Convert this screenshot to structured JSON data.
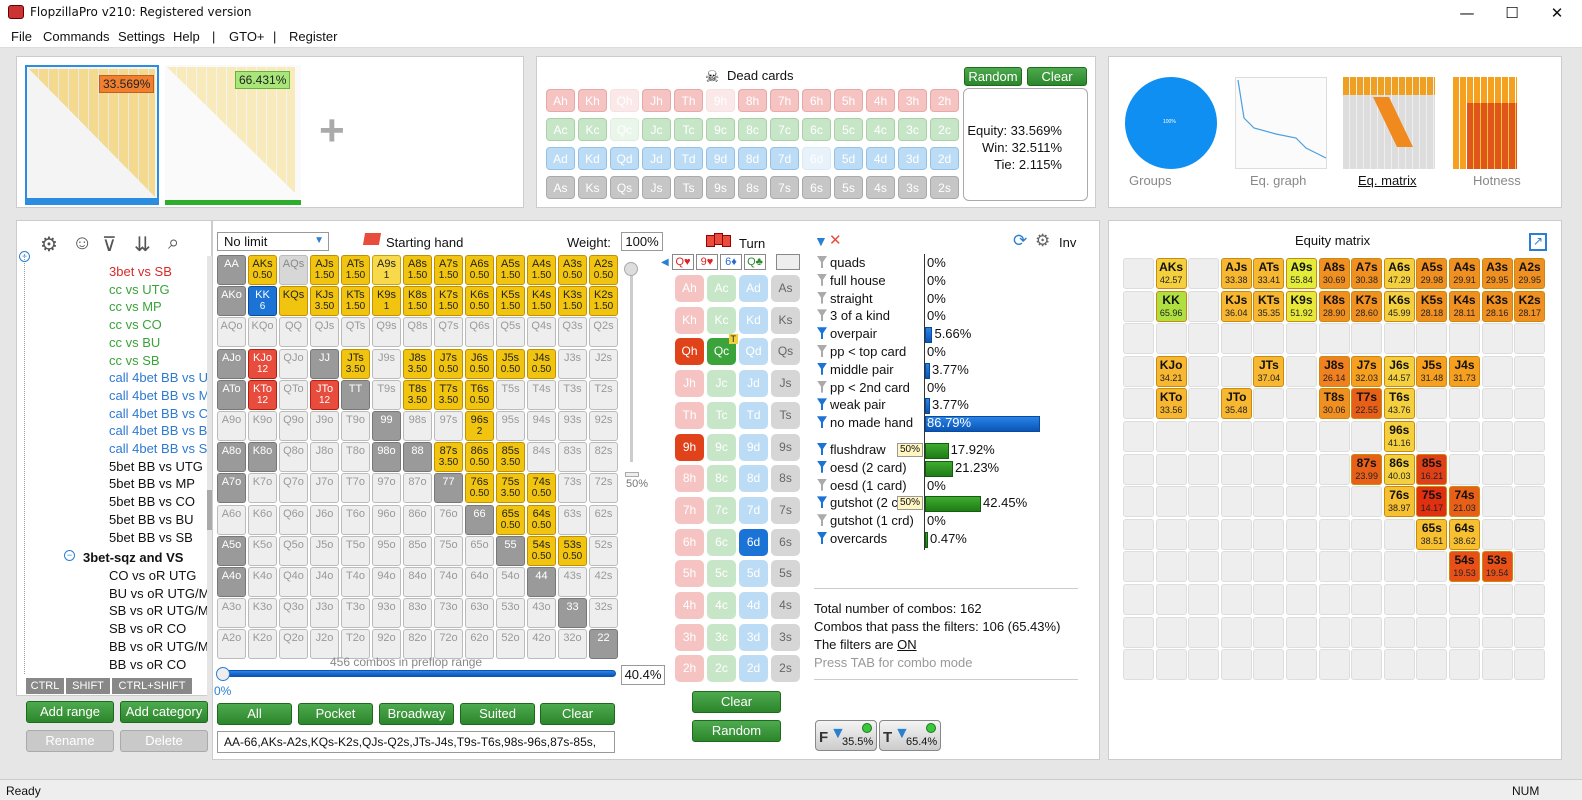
{
  "window": {
    "title": "FlopzillaPro v210: Registered version",
    "min": "—",
    "max": "☐",
    "close": "✕"
  },
  "menu": [
    "File",
    "Commands",
    "Settings",
    "Help",
    "|",
    "GTO+",
    "|",
    "Register"
  ],
  "players": {
    "p1_equity": "33.569%",
    "p2_equity": "66.431%",
    "add": "+"
  },
  "dead": {
    "title": "Dead cards",
    "random": "Random",
    "clear": "Clear",
    "ranks": [
      "A",
      "K",
      "Q",
      "J",
      "T",
      "9",
      "8",
      "7",
      "6",
      "5",
      "4",
      "3",
      "2"
    ],
    "suits": [
      "h",
      "c",
      "d",
      "s"
    ],
    "faded": [
      "Qh",
      "Jh",
      "Th",
      "9h",
      "8h",
      "7h",
      "6h",
      "5h",
      "4h",
      "3h",
      "2h",
      "Qc",
      "Jc",
      "Tc",
      "9c",
      "8c",
      "7c",
      "6c",
      "5c",
      "4c",
      "3c",
      "2c",
      "6d"
    ],
    "used": [
      "Qh",
      "9h",
      "6d",
      "Qc"
    ]
  },
  "equity": {
    "equity": "Equity: 33.569%",
    "win": "Win: 32.511%",
    "tie": "Tie: 2.115%"
  },
  "views": {
    "groups": "Groups",
    "eqgraph": "Eq. graph",
    "eqmatrix": "Eq. matrix",
    "hotness": "Hotness",
    "pie": "100%"
  },
  "tree": {
    "items": [
      {
        "t": "3bet vs SB",
        "c": "#d62b2b"
      },
      {
        "t": "cc vs UTG",
        "c": "#3aa33a"
      },
      {
        "t": "cc vs MP",
        "c": "#3aa33a"
      },
      {
        "t": "cc vs CO",
        "c": "#3aa33a"
      },
      {
        "t": "cc vs BU",
        "c": "#3aa33a"
      },
      {
        "t": "cc vs SB",
        "c": "#3aa33a"
      },
      {
        "t": "call 4bet BB vs U",
        "c": "#2e7ad1"
      },
      {
        "t": "call 4bet BB vs M",
        "c": "#2e7ad1"
      },
      {
        "t": "call 4bet BB vs C",
        "c": "#2e7ad1"
      },
      {
        "t": "call 4bet BB vs B",
        "c": "#2e7ad1"
      },
      {
        "t": "call 4bet BB vs S",
        "c": "#2e7ad1"
      },
      {
        "t": "5bet BB vs UTG",
        "c": "#111"
      },
      {
        "t": "5bet BB vs MP",
        "c": "#111"
      },
      {
        "t": "5bet BB vs CO",
        "c": "#111"
      },
      {
        "t": "5bet BB vs BU",
        "c": "#111"
      },
      {
        "t": "5bet BB vs SB",
        "c": "#111"
      }
    ],
    "group": "3bet-sqz and VS",
    "sub": [
      "CO vs oR UTG",
      "BU vs oR UTG/M",
      "SB vs oR UTG/M",
      "SB vs oR CO",
      "BB vs oR UTG/M",
      "BB vs oR CO"
    ],
    "ctrl": "CTRL",
    "shift": "SHIFT",
    "ctrlshift": "CTRL+SHIFT",
    "addrange": "Add range",
    "addcat": "Add category",
    "rename": "Rename",
    "delete": "Delete"
  },
  "range": {
    "limit": "No limit",
    "starting": "Starting hand",
    "weight_label": "Weight:",
    "weight": "100%",
    "slider_pct": "50%",
    "combos": "456 combos in preflop range",
    "pct": "40.4%",
    "slider_min": "0%",
    "all": "All",
    "pocket": "Pocket",
    "broadway": "Broadway",
    "suited": "Suited",
    "clear": "Clear",
    "text": "AA-66,AKs-A2s,KQs-K2s,QJs-Q2s,JTs-J4s,T9s-T6s,98s-96s,87s-85s,"
  },
  "turn": {
    "title": "Turn",
    "board": [
      "Q♥",
      "9♥",
      "6♦",
      "Q♣"
    ],
    "clear": "Clear",
    "random": "Random",
    "qc_badge": "T"
  },
  "stats": {
    "inv": "Inv",
    "made": [
      {
        "n": "quads",
        "p": "0%",
        "v": 0,
        "f": "gray"
      },
      {
        "n": "full house",
        "p": "0%",
        "v": 0,
        "f": "gray"
      },
      {
        "n": "straight",
        "p": "0%",
        "v": 0,
        "f": "gray"
      },
      {
        "n": "3 of a kind",
        "p": "0%",
        "v": 0,
        "f": "gray"
      },
      {
        "n": "overpair",
        "p": "5.66%",
        "v": 5.66,
        "f": "blue"
      },
      {
        "n": "pp < top card",
        "p": "0%",
        "v": 0,
        "f": "gray"
      },
      {
        "n": "middle pair",
        "p": "3.77%",
        "v": 3.77,
        "f": "blue"
      },
      {
        "n": "pp < 2nd card",
        "p": "0%",
        "v": 0,
        "f": "gray"
      },
      {
        "n": "weak pair",
        "p": "3.77%",
        "v": 3.77,
        "f": "blue"
      },
      {
        "n": "no made hand",
        "p": "86.79%",
        "v": 86.79,
        "f": "blue"
      }
    ],
    "draws": [
      {
        "n": "flushdraw",
        "p": "17.92%",
        "v": 17.92,
        "f": "blue",
        "tag": "50%"
      },
      {
        "n": "oesd (2 card)",
        "p": "21.23%",
        "v": 21.23,
        "f": "blue"
      },
      {
        "n": "oesd (1 card)",
        "p": "0%",
        "v": 0,
        "f": "gray"
      },
      {
        "n": "gutshot (2 c",
        "p": "42.45%",
        "v": 42.45,
        "f": "blue",
        "tag": "50%"
      },
      {
        "n": "gutshot (1 crd)",
        "p": "0%",
        "v": 0,
        "f": "gray"
      },
      {
        "n": "overcards",
        "p": "0.47%",
        "v": 0.47,
        "f": "blue"
      }
    ],
    "total": "Total number of combos: 162",
    "pass": "Combos that pass the filters: 106 (65.43%)",
    "filters_pre": "The filters are ",
    "filters_on": "ON",
    "tab": "Press TAB for combo mode",
    "f_pct": "35.5%",
    "t_pct": "65.4%",
    "f_lbl": "F",
    "t_lbl": "T"
  },
  "matrix": {
    "title": "Equity matrix"
  },
  "status": {
    "left": "Ready",
    "right": "NUM"
  },
  "colors": {
    "accent": "#1e90ff",
    "green": "#2c862c"
  }
}
